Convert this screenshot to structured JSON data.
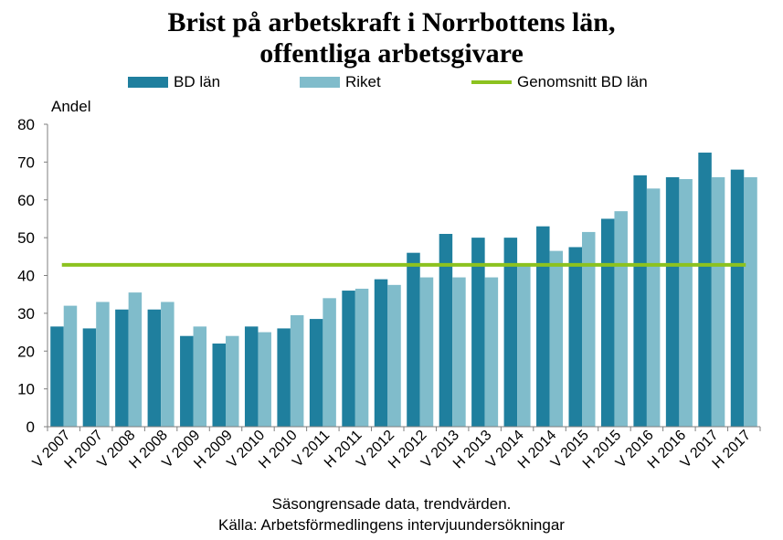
{
  "chart_data": {
    "type": "bar",
    "title_line1": "Brist på arbetskraft i Norrbottens län,",
    "title_line2": "offentliga arbetsgivare",
    "ylabel": "Andel",
    "ylim": [
      0,
      80
    ],
    "yticks": [
      0,
      10,
      20,
      30,
      40,
      50,
      60,
      70,
      80
    ],
    "grid": false,
    "legend_position": "top",
    "categories": [
      "V 2007",
      "H 2007",
      "V 2008",
      "H 2008",
      "V 2009",
      "H 2009",
      "V 2010",
      "H 2010",
      "V 2011",
      "H 2011",
      "V 2012",
      "H 2012",
      "V 2013",
      "H 2013",
      "V 2014",
      "H 2014",
      "V 2015",
      "H 2015",
      "V 2016",
      "H 2016",
      "V 2017",
      "H 2017"
    ],
    "series": [
      {
        "name": "BD län",
        "color": "#1f7f9e",
        "values": [
          26.5,
          26,
          31,
          31,
          24,
          22,
          26.5,
          26,
          28.5,
          36,
          39,
          46,
          51,
          50,
          50,
          53,
          47.5,
          55,
          66.5,
          66,
          72.5,
          68
        ]
      },
      {
        "name": "Riket",
        "color": "#80bccb",
        "values": [
          32,
          33,
          35.5,
          33,
          26.5,
          24,
          25,
          29.5,
          34,
          36.5,
          37.5,
          39.5,
          39.5,
          39.5,
          43,
          46.5,
          51.5,
          57,
          63,
          65.5,
          66,
          66
        ]
      }
    ],
    "reference_line": {
      "name": "Genomsnitt BD län",
      "value": 42.8,
      "color": "#8cc21f"
    },
    "footer_line1": "Säsongrensade data, trendvärden.",
    "footer_line2": "Källa: Arbetsförmedlingens intervjuundersökningar"
  }
}
